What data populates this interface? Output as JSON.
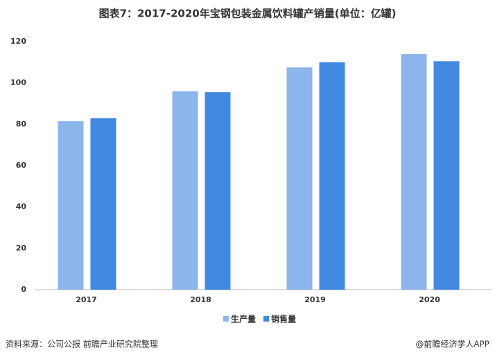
{
  "chart_data": {
    "type": "bar",
    "title": "图表7：2017-2020年宝钢包装金属饮料罐产销量(单位：亿罐)",
    "categories": [
      "2017",
      "2018",
      "2019",
      "2020"
    ],
    "series": [
      {
        "name": "生产量",
        "color": "#8cb5ec",
        "values": [
          81.5,
          96,
          107.5,
          114
        ]
      },
      {
        "name": "销售量",
        "color": "#4189e0",
        "values": [
          83,
          95.5,
          110,
          110.5
        ]
      }
    ],
    "ylim": [
      0,
      120
    ],
    "yticks": [
      0,
      20,
      40,
      60,
      80,
      100,
      120
    ],
    "source": "资料来源：公司公报 前瞻产业研究院整理",
    "credit": "@前瞻经济学人APP"
  }
}
